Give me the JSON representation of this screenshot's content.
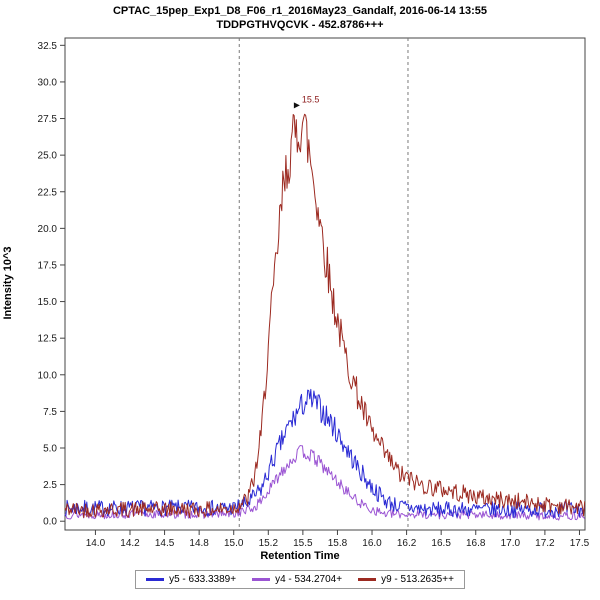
{
  "header": {
    "title_line1": "CPTAC_15pep_Exp1_D8_F06_r1_2016May23_Gandalf, 2016-06-14 13:55",
    "title_line2": "TDDPGTHVQCVK - 452.8786+++"
  },
  "axes": {
    "x_label": "Retention Time",
    "y_label": "Intensity 10^3"
  },
  "legend": {
    "items": [
      {
        "label": "y5 - 633.3389+",
        "color": "#2a2ad4"
      },
      {
        "label": "y4 - 534.2704+",
        "color": "#9b55d3"
      },
      {
        "label": "y9 - 513.2635++",
        "color": "#9c2a21"
      }
    ]
  },
  "chart_data": {
    "type": "line",
    "title": "CPTAC_15pep_Exp1_D8_F06_r1_2016May23_Gandalf, 2016-06-14 13:55",
    "subtitle": "TDDPGTHVQCVK - 452.8786+++",
    "xlabel": "Retention Time",
    "ylabel": "Intensity 10^3",
    "x_min": 13.78,
    "x_max": 17.54,
    "y_min": -0.6,
    "y_max": 33.0,
    "grid": false,
    "legend_position": "bottom-center",
    "x_ticks": [
      {
        "v": 14.0,
        "label": "14.0"
      },
      {
        "v": 14.25,
        "label": "14.2"
      },
      {
        "v": 14.5,
        "label": "14.5"
      },
      {
        "v": 14.75,
        "label": "14.8"
      },
      {
        "v": 15.0,
        "label": "15.0"
      },
      {
        "v": 15.25,
        "label": "15.2"
      },
      {
        "v": 15.5,
        "label": "15.5"
      },
      {
        "v": 15.75,
        "label": "15.8"
      },
      {
        "v": 16.0,
        "label": "16.0"
      },
      {
        "v": 16.25,
        "label": "16.2"
      },
      {
        "v": 16.5,
        "label": "16.5"
      },
      {
        "v": 16.75,
        "label": "16.8"
      },
      {
        "v": 17.0,
        "label": "17.0"
      },
      {
        "v": 17.25,
        "label": "17.2"
      },
      {
        "v": 17.5,
        "label": "17.5"
      }
    ],
    "y_ticks": [
      {
        "v": 0.0,
        "label": "0.0"
      },
      {
        "v": 2.5,
        "label": "2.5"
      },
      {
        "v": 5.0,
        "label": "5.0"
      },
      {
        "v": 7.5,
        "label": "7.5"
      },
      {
        "v": 10.0,
        "label": "10.0"
      },
      {
        "v": 12.5,
        "label": "12.5"
      },
      {
        "v": 15.0,
        "label": "15.0"
      },
      {
        "v": 17.5,
        "label": "17.5"
      },
      {
        "v": 20.0,
        "label": "20.0"
      },
      {
        "v": 22.5,
        "label": "22.5"
      },
      {
        "v": 25.0,
        "label": "25.0"
      },
      {
        "v": 27.5,
        "label": "27.5"
      },
      {
        "v": 30.0,
        "label": "30.0"
      },
      {
        "v": 32.5,
        "label": "32.5"
      }
    ],
    "integration_boundaries": [
      15.04,
      16.26
    ],
    "annotation": {
      "x": 15.5,
      "y": 28.4,
      "label": "15.5",
      "color": "#8b1a1a"
    },
    "sample_step": 0.0075,
    "series": [
      {
        "name": "y5 - 633.3389+",
        "color": "#2a2ad4",
        "seed": 7,
        "draw_order": 2,
        "noise_base": 0.5,
        "noise_rel": 0.05,
        "peak_apex_x": 15.55,
        "peak_apex_y": 8.5,
        "envelope": [
          [
            13.78,
            0.9
          ],
          [
            15.0,
            0.9
          ],
          [
            15.1,
            1.2
          ],
          [
            15.2,
            2.2
          ],
          [
            15.3,
            4.5
          ],
          [
            15.4,
            6.5
          ],
          [
            15.5,
            8.0
          ],
          [
            15.55,
            8.3
          ],
          [
            15.6,
            8.0
          ],
          [
            15.7,
            6.8
          ],
          [
            15.8,
            5.2
          ],
          [
            15.9,
            3.6
          ],
          [
            16.0,
            2.3
          ],
          [
            16.1,
            1.4
          ],
          [
            16.2,
            1.0
          ],
          [
            16.4,
            0.8
          ],
          [
            17.54,
            0.8
          ]
        ]
      },
      {
        "name": "y4 - 534.2704+",
        "color": "#9b55d3",
        "seed": 13,
        "draw_order": 1,
        "noise_base": 0.28,
        "noise_rel": 0.05,
        "peak_apex_x": 15.5,
        "peak_apex_y": 5.0,
        "envelope": [
          [
            13.78,
            0.45
          ],
          [
            15.0,
            0.5
          ],
          [
            15.15,
            0.9
          ],
          [
            15.25,
            2.0
          ],
          [
            15.35,
            3.5
          ],
          [
            15.45,
            4.5
          ],
          [
            15.5,
            4.8
          ],
          [
            15.6,
            4.2
          ],
          [
            15.7,
            3.2
          ],
          [
            15.8,
            2.2
          ],
          [
            15.9,
            1.3
          ],
          [
            16.0,
            0.8
          ],
          [
            16.1,
            0.5
          ],
          [
            17.54,
            0.35
          ]
        ]
      },
      {
        "name": "y9 - 513.2635++",
        "color": "#9c2a21",
        "seed": 42,
        "draw_order": 3,
        "noise_base": 0.5,
        "noise_rel": 0.06,
        "peak_apex_x": 15.5,
        "peak_apex_y": 28.5,
        "envelope": [
          [
            13.78,
            0.8
          ],
          [
            14.9,
            0.8
          ],
          [
            15.0,
            0.9
          ],
          [
            15.1,
            1.5
          ],
          [
            15.15,
            3.0
          ],
          [
            15.2,
            6.0
          ],
          [
            15.25,
            12.0
          ],
          [
            15.3,
            17.0
          ],
          [
            15.35,
            22.0
          ],
          [
            15.4,
            25.0
          ],
          [
            15.45,
            26.5
          ],
          [
            15.5,
            27.5
          ],
          [
            15.55,
            25.0
          ],
          [
            15.6,
            22.0
          ],
          [
            15.7,
            16.0
          ],
          [
            15.8,
            11.5
          ],
          [
            15.9,
            8.5
          ],
          [
            16.0,
            6.0
          ],
          [
            16.1,
            4.5
          ],
          [
            16.2,
            3.2
          ],
          [
            16.35,
            2.5
          ],
          [
            16.5,
            2.2
          ],
          [
            16.8,
            1.6
          ],
          [
            17.1,
            1.3
          ],
          [
            17.54,
            0.9
          ]
        ]
      }
    ]
  }
}
